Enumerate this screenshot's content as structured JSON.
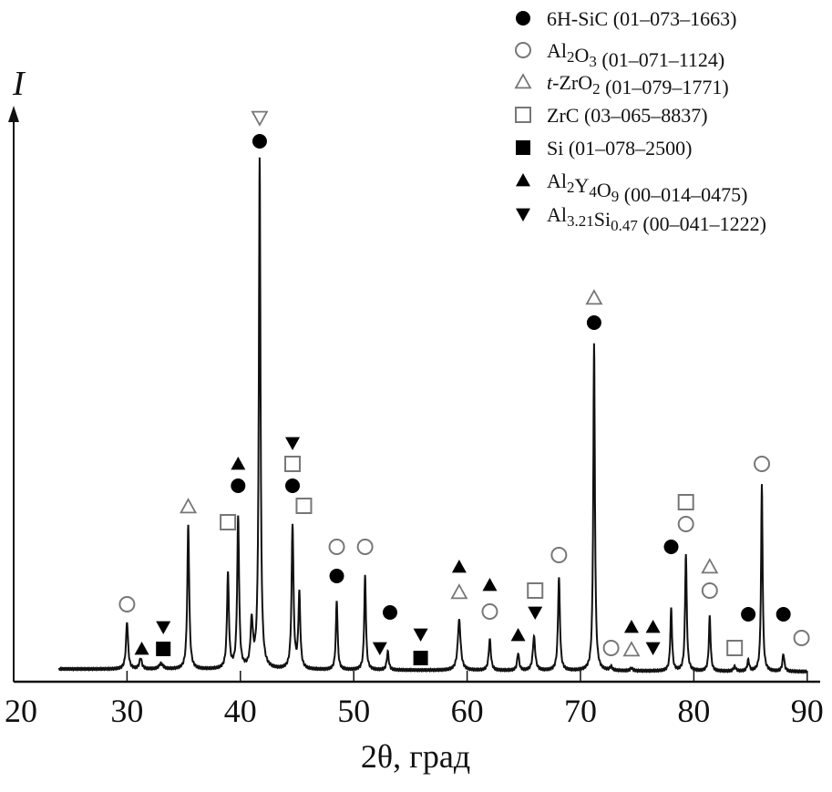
{
  "chart_data": {
    "type": "line",
    "title": "",
    "ylabel": "I",
    "xlabel": "2θ, град",
    "xlim": [
      20,
      92
    ],
    "ylim": [
      0,
      630
    ],
    "intensity_units": "arbitrary",
    "x_ticks": [
      20,
      30,
      40,
      50,
      60,
      70,
      80,
      90
    ],
    "grid": false,
    "legend_position": "top-right",
    "background_level": 14,
    "pattern_range": [
      24,
      90
    ],
    "peaks": [
      {
        "x": 30.0,
        "i": 52,
        "w": 0.22
      },
      {
        "x": 31.2,
        "i": 12,
        "w": 0.25
      },
      {
        "x": 33.0,
        "i": 6,
        "w": 0.4
      },
      {
        "x": 35.4,
        "i": 158,
        "w": 0.2
      },
      {
        "x": 38.9,
        "i": 104,
        "w": 0.2
      },
      {
        "x": 39.8,
        "i": 165,
        "w": 0.2
      },
      {
        "x": 41.0,
        "i": 50,
        "w": 0.25
      },
      {
        "x": 41.7,
        "i": 560,
        "w": 0.18
      },
      {
        "x": 44.6,
        "i": 158,
        "w": 0.2
      },
      {
        "x": 45.2,
        "i": 82,
        "w": 0.2
      },
      {
        "x": 48.5,
        "i": 76,
        "w": 0.18
      },
      {
        "x": 51.0,
        "i": 103,
        "w": 0.18
      },
      {
        "x": 53.0,
        "i": 20,
        "w": 0.2
      },
      {
        "x": 59.3,
        "i": 55,
        "w": 0.3
      },
      {
        "x": 62.0,
        "i": 34,
        "w": 0.22
      },
      {
        "x": 64.5,
        "i": 19,
        "w": 0.2
      },
      {
        "x": 65.9,
        "i": 37,
        "w": 0.25
      },
      {
        "x": 68.1,
        "i": 102,
        "w": 0.2
      },
      {
        "x": 71.2,
        "i": 358,
        "w": 0.17
      },
      {
        "x": 72.7,
        "i": 4,
        "w": 0.25
      },
      {
        "x": 74.5,
        "i": 3,
        "w": 0.25
      },
      {
        "x": 78.0,
        "i": 68,
        "w": 0.18
      },
      {
        "x": 79.3,
        "i": 128,
        "w": 0.18
      },
      {
        "x": 81.4,
        "i": 60,
        "w": 0.18
      },
      {
        "x": 83.6,
        "i": 5,
        "w": 0.25
      },
      {
        "x": 84.8,
        "i": 12,
        "w": 0.2
      },
      {
        "x": 86.0,
        "i": 205,
        "w": 0.16
      },
      {
        "x": 87.9,
        "i": 19,
        "w": 0.2
      }
    ],
    "phases": [
      {
        "key": "sic",
        "symbol": "circle-filled",
        "parts": [
          {
            "t": "6H-SiC"
          }
        ],
        "card": " (01–073–1663)"
      },
      {
        "key": "al2o3",
        "symbol": "circle-open",
        "parts": [
          {
            "t": "Al"
          },
          {
            "t": "2",
            "sub": true
          },
          {
            "t": "O"
          },
          {
            "t": "3",
            "sub": true
          }
        ],
        "card": " (01–071–1124)"
      },
      {
        "key": "zro2",
        "symbol": "triangle-open",
        "parts": [
          {
            "t": "t",
            "it": true
          },
          {
            "t": "-ZrO"
          },
          {
            "t": "2",
            "sub": true
          }
        ],
        "card": " (01–079–1771)"
      },
      {
        "key": "zrc",
        "symbol": "square-open",
        "parts": [
          {
            "t": "ZrC"
          }
        ],
        "card": " (03–065–8837)"
      },
      {
        "key": "si",
        "symbol": "square-filled",
        "parts": [
          {
            "t": "Si"
          }
        ],
        "card": " (01–078–2500)"
      },
      {
        "key": "al2y4o9",
        "symbol": "triangle-filled",
        "parts": [
          {
            "t": "Al"
          },
          {
            "t": "2",
            "sub": true
          },
          {
            "t": "Y"
          },
          {
            "t": "4",
            "sub": true
          },
          {
            "t": "O"
          },
          {
            "t": "9",
            "sub": true
          }
        ],
        "card": " (00–014–0475)"
      },
      {
        "key": "alsi",
        "symbol": "triangle-down-filled",
        "parts": [
          {
            "t": "Al"
          },
          {
            "t": "3.21",
            "sub": true
          },
          {
            "t": "Si"
          },
          {
            "t": "0.47",
            "sub": true
          }
        ],
        "card": " (00–041–1222)"
      }
    ],
    "peak_markers": [
      {
        "x": 30.0,
        "i": 85,
        "phase": "al2o3"
      },
      {
        "x": 31.3,
        "i": 36,
        "phase": "al2y4o9"
      },
      {
        "x": 33.2,
        "i": 60,
        "phase": "alsi"
      },
      {
        "x": 33.2,
        "i": 36,
        "phase": "si"
      },
      {
        "x": 35.4,
        "i": 192,
        "phase": "zro2"
      },
      {
        "x": 38.9,
        "i": 175,
        "phase": "zrc"
      },
      {
        "x": 39.8,
        "i": 239,
        "phase": "al2y4o9"
      },
      {
        "x": 39.8,
        "i": 215,
        "phase": "sic"
      },
      {
        "x": 41.7,
        "i": 619,
        "phase": "alsi-open"
      },
      {
        "x": 41.7,
        "i": 593,
        "phase": "sic"
      },
      {
        "x": 44.6,
        "i": 262,
        "phase": "alsi"
      },
      {
        "x": 44.6,
        "i": 239,
        "phase": "zrc"
      },
      {
        "x": 44.6,
        "i": 215,
        "phase": "sic"
      },
      {
        "x": 45.6,
        "i": 193,
        "phase": "zrc"
      },
      {
        "x": 48.5,
        "i": 148,
        "phase": "al2o3"
      },
      {
        "x": 48.5,
        "i": 116,
        "phase": "sic"
      },
      {
        "x": 51.0,
        "i": 148,
        "phase": "al2o3"
      },
      {
        "x": 52.3,
        "i": 37,
        "phase": "alsi"
      },
      {
        "x": 53.2,
        "i": 76,
        "phase": "sic"
      },
      {
        "x": 55.9,
        "i": 52,
        "phase": "alsi"
      },
      {
        "x": 55.9,
        "i": 26,
        "phase": "si"
      },
      {
        "x": 59.3,
        "i": 126,
        "phase": "al2y4o9"
      },
      {
        "x": 59.3,
        "i": 98,
        "phase": "zro2"
      },
      {
        "x": 62.0,
        "i": 106,
        "phase": "al2y4o9"
      },
      {
        "x": 62.0,
        "i": 77,
        "phase": "al2o3"
      },
      {
        "x": 64.5,
        "i": 51,
        "phase": "al2y4o9"
      },
      {
        "x": 66.0,
        "i": 100,
        "phase": "zrc"
      },
      {
        "x": 66.0,
        "i": 76,
        "phase": "alsi"
      },
      {
        "x": 68.1,
        "i": 139,
        "phase": "al2o3"
      },
      {
        "x": 71.2,
        "i": 421,
        "phase": "zro2"
      },
      {
        "x": 71.2,
        "i": 394,
        "phase": "sic"
      },
      {
        "x": 72.7,
        "i": 37,
        "phase": "al2o3"
      },
      {
        "x": 74.5,
        "i": 60,
        "phase": "al2y4o9"
      },
      {
        "x": 74.5,
        "i": 35,
        "phase": "zro2"
      },
      {
        "x": 76.4,
        "i": 60,
        "phase": "al2y4o9"
      },
      {
        "x": 76.4,
        "i": 37,
        "phase": "alsi"
      },
      {
        "x": 78.0,
        "i": 148,
        "phase": "sic"
      },
      {
        "x": 79.3,
        "i": 197,
        "phase": "zrc"
      },
      {
        "x": 79.3,
        "i": 173,
        "phase": "al2o3"
      },
      {
        "x": 81.4,
        "i": 126,
        "phase": "zro2"
      },
      {
        "x": 81.4,
        "i": 100,
        "phase": "al2o3"
      },
      {
        "x": 83.6,
        "i": 37,
        "phase": "zrc"
      },
      {
        "x": 84.8,
        "i": 74,
        "phase": "sic"
      },
      {
        "x": 86.0,
        "i": 239,
        "phase": "al2o3"
      },
      {
        "x": 87.9,
        "i": 74,
        "phase": "sic"
      },
      {
        "x": 89.5,
        "i": 48,
        "phase": "al2o3"
      }
    ],
    "colors": {
      "line": "#111111",
      "open_marker": "#777777",
      "filled_marker": "#000000"
    }
  }
}
